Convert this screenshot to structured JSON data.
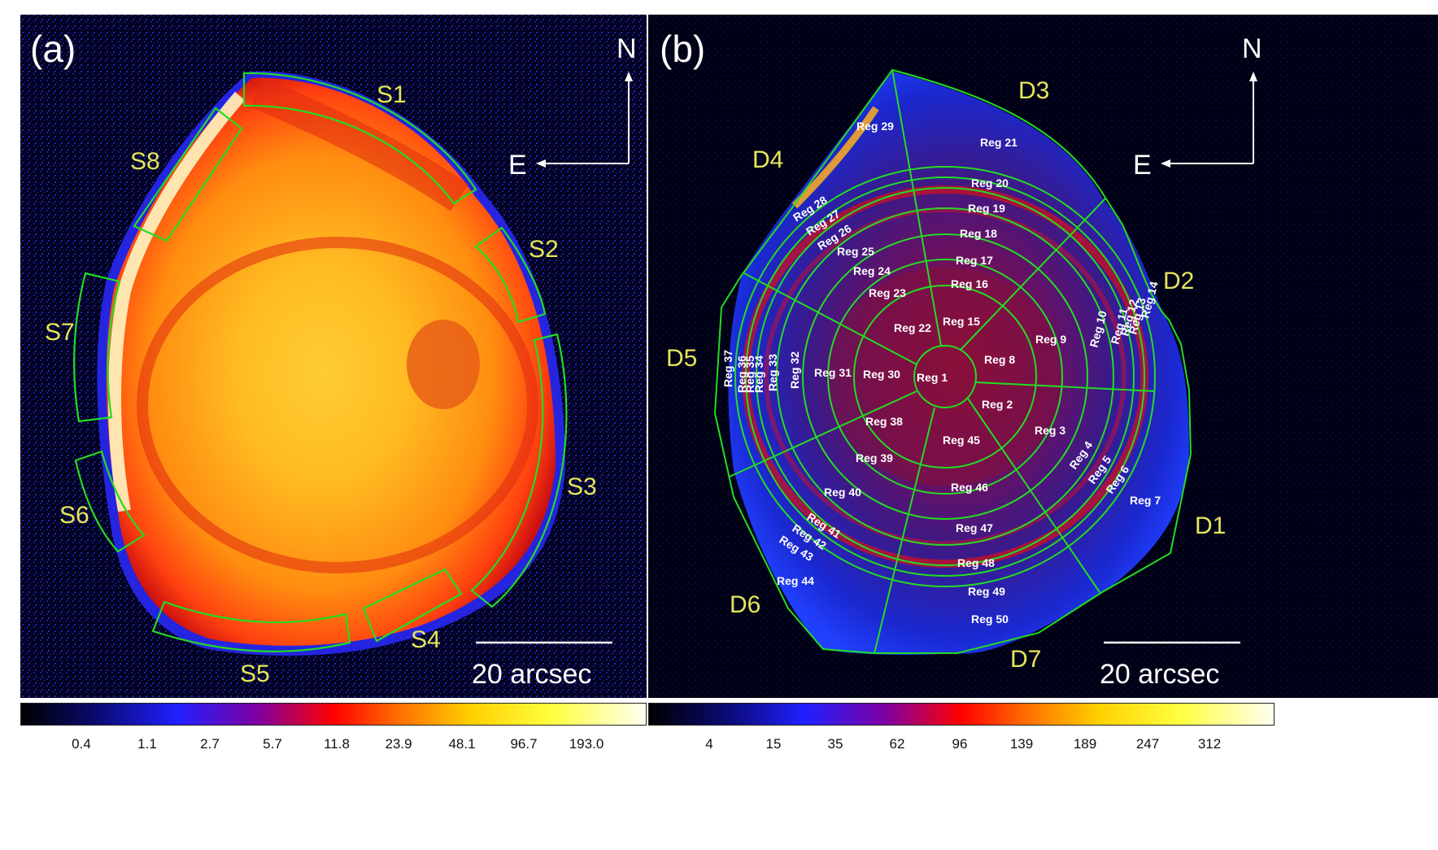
{
  "panel_a": {
    "label": "(a)",
    "compass": {
      "north": "N",
      "east": "E"
    },
    "scale_bar": "20 arcsec",
    "regions": [
      "S1",
      "S2",
      "S3",
      "S4",
      "S5",
      "S6",
      "S7",
      "S8"
    ]
  },
  "panel_b": {
    "label": "(b)",
    "compass": {
      "north": "N",
      "east": "E"
    },
    "scale_bar": "20 arcsec",
    "sectors": [
      "D1",
      "D2",
      "D3",
      "D4",
      "D5",
      "D6",
      "D7"
    ],
    "regions": [
      "Reg 1",
      "Reg 2",
      "Reg 3",
      "Reg 4",
      "Reg 5",
      "Reg 6",
      "Reg 7",
      "Reg 8",
      "Reg 9",
      "Reg 10",
      "Reg 11",
      "Reg 12",
      "Reg 13",
      "Reg 14",
      "Reg 15",
      "Reg 16",
      "Reg 17",
      "Reg 18",
      "Reg 19",
      "Reg 20",
      "Reg 21",
      "Reg 22",
      "Reg 23",
      "Reg 24",
      "Reg 25",
      "Reg 26",
      "Reg 27",
      "Reg 28",
      "Reg 29",
      "Reg 30",
      "Reg 31",
      "Reg 32",
      "Reg 33",
      "Reg 34",
      "Reg 35",
      "Reg 36",
      "Reg 37",
      "Reg 38",
      "Reg 39",
      "Reg 40",
      "Reg 41",
      "Reg 42",
      "Reg 43",
      "Reg 44",
      "Reg 45",
      "Reg 46",
      "Reg 47",
      "Reg 48",
      "Reg 49",
      "Reg 50"
    ]
  },
  "colorbar_a_ticks": [
    "0.4",
    "1.1",
    "2.7",
    "5.7",
    "11.8",
    "23.9",
    "48.1",
    "96.7",
    "193.0"
  ],
  "colorbar_b_ticks": [
    "4",
    "15",
    "35",
    "62",
    "96",
    "139",
    "189",
    "247",
    "312"
  ],
  "colors": {
    "region_outline": "#22dd22",
    "label_yellow": "#e6e65a",
    "background": "#000033"
  }
}
